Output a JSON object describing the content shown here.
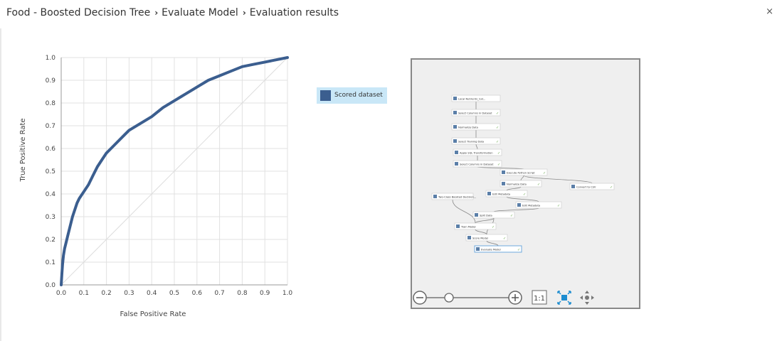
{
  "breadcrumb": {
    "items": [
      "Food - Boosted Decision Tree",
      "Evaluate Model",
      "Evaluation results"
    ],
    "separator": "›"
  },
  "window": {
    "close_glyph": "×"
  },
  "chart_data": {
    "type": "line",
    "xlabel": "False Positive Rate",
    "ylabel": "True Positive Rate",
    "xlim": [
      0,
      1
    ],
    "ylim": [
      0,
      1
    ],
    "x_ticks": [
      "0.0",
      "0.1",
      "0.2",
      "0.3",
      "0.4",
      "0.5",
      "0.6",
      "0.7",
      "0.8",
      "0.9",
      "1.0"
    ],
    "y_ticks": [
      "0.0",
      "0.1",
      "0.2",
      "0.3",
      "0.4",
      "0.5",
      "0.6",
      "0.7",
      "0.8",
      "0.9",
      "1.0"
    ],
    "grid": true,
    "legend_position": "right",
    "series": [
      {
        "name": "Scored dataset",
        "color": "#3b5e8f",
        "x": [
          0,
          0.003,
          0.006,
          0.01,
          0.015,
          0.02,
          0.03,
          0.04,
          0.05,
          0.06,
          0.07,
          0.08,
          0.1,
          0.12,
          0.14,
          0.16,
          0.18,
          0.2,
          0.22,
          0.25,
          0.28,
          0.3,
          0.35,
          0.4,
          0.45,
          0.5,
          0.55,
          0.6,
          0.65,
          0.7,
          0.75,
          0.8,
          0.85,
          0.9,
          0.95,
          1.0
        ],
        "y": [
          0,
          0.05,
          0.09,
          0.13,
          0.16,
          0.18,
          0.22,
          0.26,
          0.3,
          0.33,
          0.36,
          0.38,
          0.41,
          0.44,
          0.48,
          0.52,
          0.55,
          0.58,
          0.6,
          0.63,
          0.66,
          0.68,
          0.71,
          0.74,
          0.78,
          0.81,
          0.84,
          0.87,
          0.9,
          0.92,
          0.94,
          0.96,
          0.97,
          0.98,
          0.99,
          1.0
        ]
      },
      {
        "name": "diagonal",
        "color": "#dddddd",
        "x": [
          0,
          1
        ],
        "y": [
          0,
          1
        ]
      }
    ]
  },
  "legend": {
    "items": [
      {
        "label": "Scored dataset",
        "color": "#3b5e8f"
      }
    ]
  },
  "experiment": {
    "modules": [
      {
        "label": "Local Nutrients_Cat...",
        "status": ""
      },
      {
        "label": "Select Columns in Dataset",
        "status": "✓"
      },
      {
        "label": "Normalize Data",
        "status": "✓"
      },
      {
        "label": "Select Training Data",
        "status": "✓"
      },
      {
        "label": "Apply SQL Transformation",
        "status": "✓"
      },
      {
        "label": "Select Columns in Dataset",
        "status": "✓"
      },
      {
        "label": "Execute Python Script",
        "status": "✓"
      },
      {
        "label": "Normalize Data",
        "status": "✓"
      },
      {
        "label": "Convert to CSV",
        "status": "✓"
      },
      {
        "label": "Edit Metadata",
        "status": "✓"
      },
      {
        "label": "Edit Metadata",
        "status": "✓"
      },
      {
        "label": "Two-Class Boosted Decision...",
        "status": ""
      },
      {
        "label": "Split Data",
        "status": "✓"
      },
      {
        "label": "Train Model",
        "status": "✓"
      },
      {
        "label": "Score Model",
        "status": "✓"
      },
      {
        "label": "Evaluate Model",
        "status": "✓"
      }
    ],
    "zoom": {
      "one_to_one_label": "1:1",
      "level": 0.25
    },
    "selected_module": "Evaluate Model"
  },
  "colors": {
    "accent": "#3b5e8f",
    "legend_bg": "#c9e7f7",
    "zoom_icon_blue": "#1e8dd0"
  }
}
